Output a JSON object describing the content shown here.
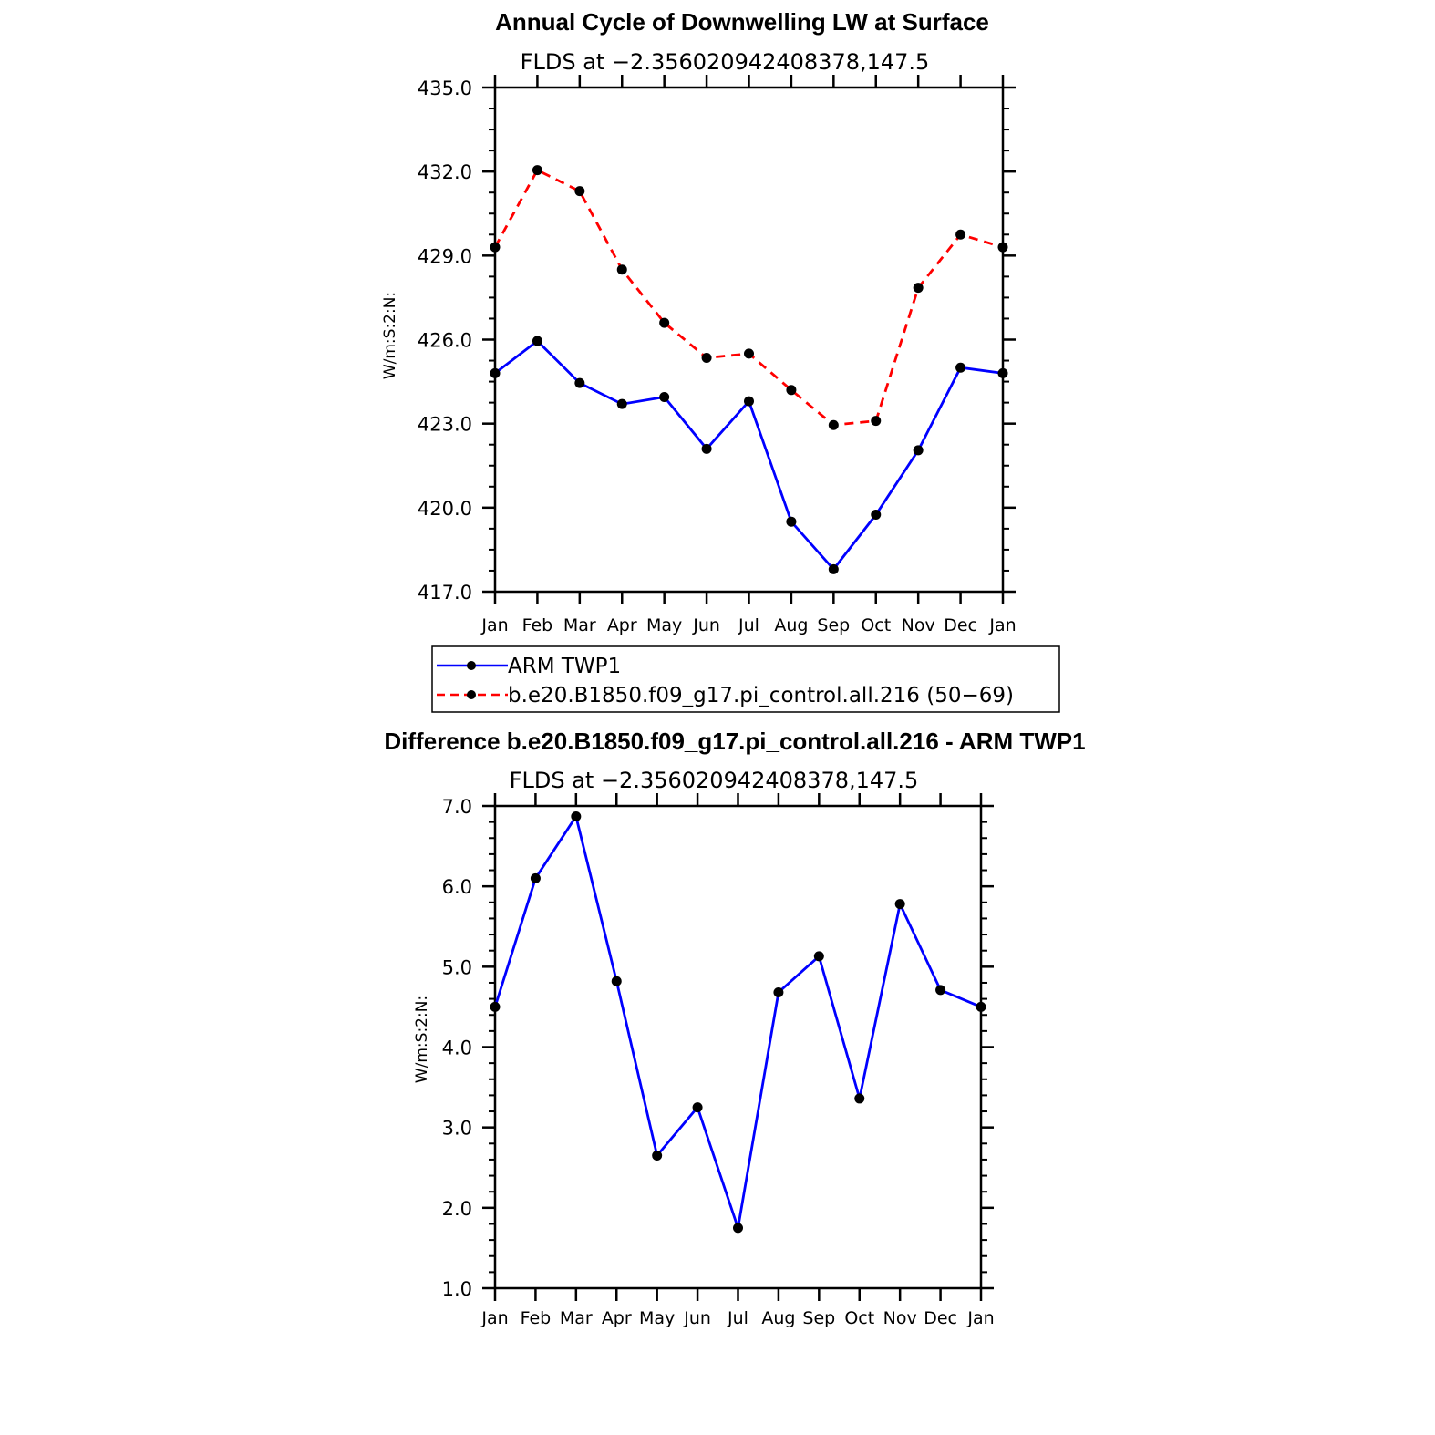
{
  "chart_data": [
    {
      "type": "line",
      "title": "Annual Cycle of Downwelling LW at Surface",
      "subtitle": "FLDS at −2.356020942408378,147.5",
      "ylabel": "W/m:S:2:N:",
      "xlabel": "",
      "ylim": [
        417.0,
        435.0
      ],
      "yticks": [
        "417.0",
        "420.0",
        "423.0",
        "426.0",
        "429.0",
        "432.0",
        "435.0"
      ],
      "categories": [
        "Jan",
        "Feb",
        "Mar",
        "Apr",
        "May",
        "Jun",
        "Jul",
        "Aug",
        "Sep",
        "Oct",
        "Nov",
        "Dec",
        "Jan"
      ],
      "grid": false,
      "legend_position": "bottom",
      "series": [
        {
          "name": "ARM  TWP1",
          "color": "#0000ff",
          "dashed": false,
          "values": [
            424.8,
            425.95,
            424.45,
            423.7,
            423.95,
            422.1,
            423.8,
            419.5,
            417.8,
            419.75,
            422.05,
            425.0,
            424.8
          ]
        },
        {
          "name": "b.e20.B1850.f09_g17.pi_control.all.216 (50−69)",
          "color": "#ff0000",
          "dashed": true,
          "values": [
            429.3,
            432.05,
            431.3,
            428.5,
            426.6,
            425.35,
            425.5,
            424.2,
            422.95,
            423.1,
            427.85,
            429.75,
            429.3
          ]
        }
      ]
    },
    {
      "type": "line",
      "title": "Difference b.e20.B1850.f09_g17.pi_control.all.216 - ARM TWP1",
      "subtitle": "FLDS at −2.356020942408378,147.5",
      "ylabel": "W/m:S:2:N:",
      "xlabel": "",
      "ylim": [
        1.0,
        7.0
      ],
      "yticks": [
        "1.0",
        "2.0",
        "3.0",
        "4.0",
        "5.0",
        "6.0",
        "7.0"
      ],
      "categories": [
        "Jan",
        "Feb",
        "Mar",
        "Apr",
        "May",
        "Jun",
        "Jul",
        "Aug",
        "Sep",
        "Oct",
        "Nov",
        "Dec",
        "Jan"
      ],
      "grid": false,
      "series": [
        {
          "color": "#0000ff",
          "dashed": false,
          "values": [
            4.5,
            6.1,
            6.87,
            4.82,
            2.65,
            3.25,
            1.75,
            4.68,
            5.13,
            3.36,
            5.78,
            4.71,
            4.5
          ]
        }
      ]
    }
  ]
}
